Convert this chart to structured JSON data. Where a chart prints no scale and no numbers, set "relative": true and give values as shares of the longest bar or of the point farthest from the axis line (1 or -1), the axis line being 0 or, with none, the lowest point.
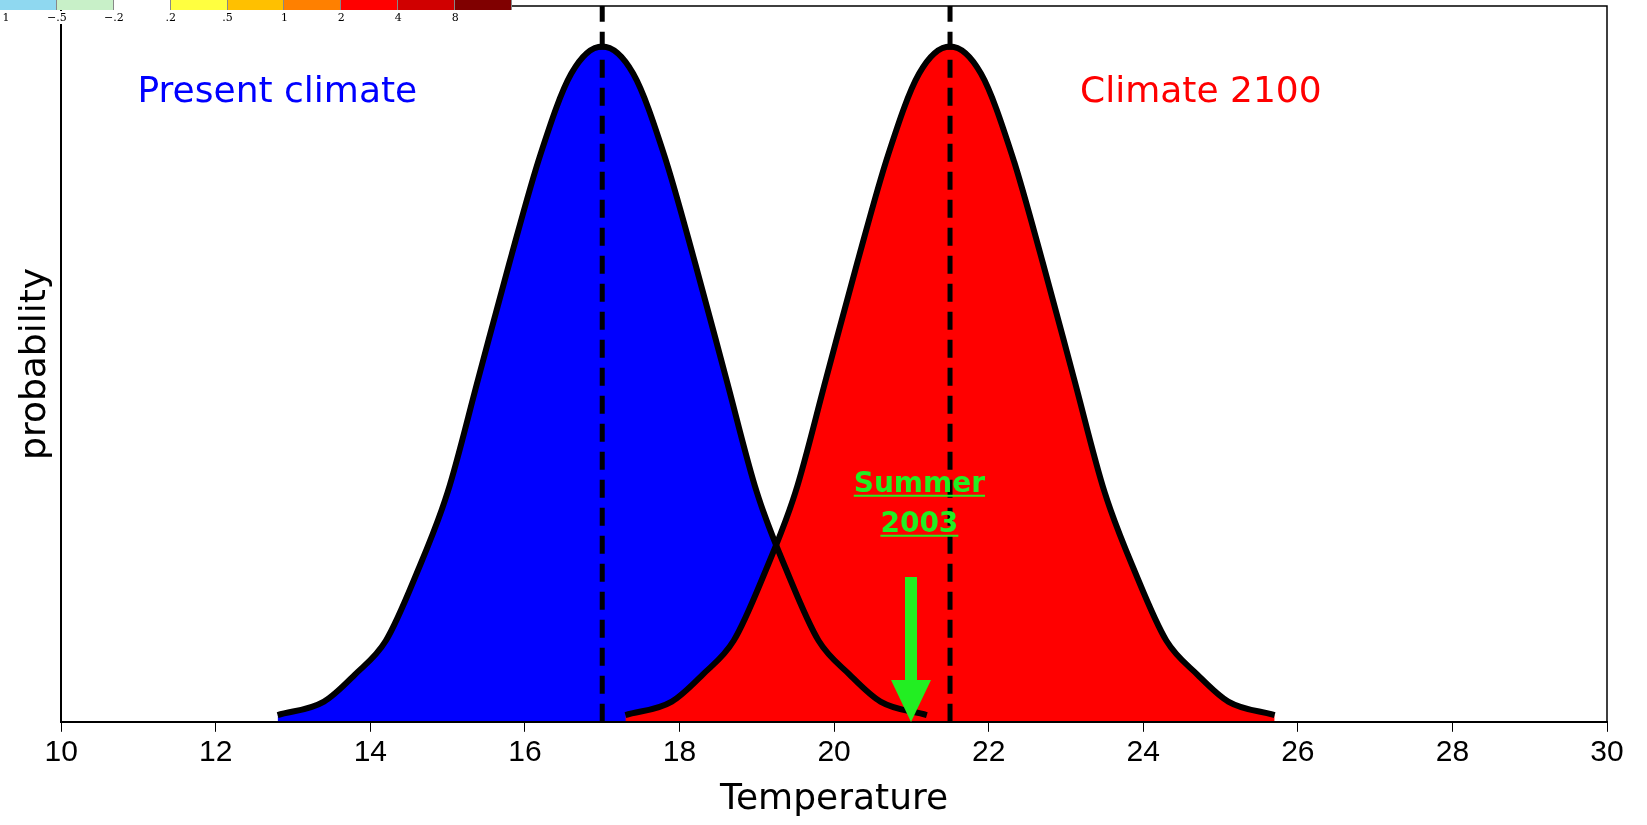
{
  "chart_data": {
    "type": "area",
    "relative": true,
    "xlabel": "Temperature",
    "ylabel": "probability",
    "xlim": [
      10,
      30
    ],
    "xticks": [
      10,
      12,
      14,
      16,
      18,
      20,
      22,
      24,
      26,
      28,
      30
    ],
    "grid": false,
    "legend": false,
    "marker": "none",
    "series": [
      {
        "name": "Climate 2100",
        "color": "#ff0000",
        "x": [
          17.3,
          17.9,
          18.3,
          18.7,
          19.1,
          19.5,
          19.9,
          20.3,
          20.7,
          21.1,
          21.5,
          21.9,
          22.3,
          22.7,
          23.1,
          23.5,
          23.9,
          24.3,
          24.7,
          25.1,
          25.7
        ],
        "values": [
          0.01,
          0.03,
          0.07,
          0.12,
          0.22,
          0.34,
          0.51,
          0.68,
          0.84,
          0.96,
          1,
          0.96,
          0.84,
          0.68,
          0.51,
          0.34,
          0.22,
          0.12,
          0.07,
          0.03,
          0.01
        ]
      },
      {
        "name": "Present climate",
        "color": "#0000ff",
        "x": [
          12.8,
          13.4,
          13.8,
          14.2,
          14.6,
          15.0,
          15.4,
          15.8,
          16.2,
          16.6,
          17,
          17.4,
          17.8,
          18.2,
          18.6,
          19.0,
          19.4,
          19.8,
          20.2,
          20.6,
          21.2
        ],
        "values": [
          0.01,
          0.03,
          0.07,
          0.12,
          0.22,
          0.34,
          0.51,
          0.68,
          0.84,
          0.96,
          1,
          0.96,
          0.84,
          0.68,
          0.51,
          0.34,
          0.22,
          0.12,
          0.07,
          0.03,
          0.01
        ]
      }
    ],
    "ref_lines": [
      {
        "axis": "x",
        "value": 17,
        "color": "#000000",
        "line_style": "dashed"
      },
      {
        "axis": "x",
        "value": 21.5,
        "color": "#000000",
        "line_style": "dashed"
      }
    ],
    "annotations": [
      "Summer 2003",
      "1",
      "−.5",
      "−.2",
      ".2",
      ".5",
      "1",
      "2",
      "4",
      "8"
    ]
  }
}
